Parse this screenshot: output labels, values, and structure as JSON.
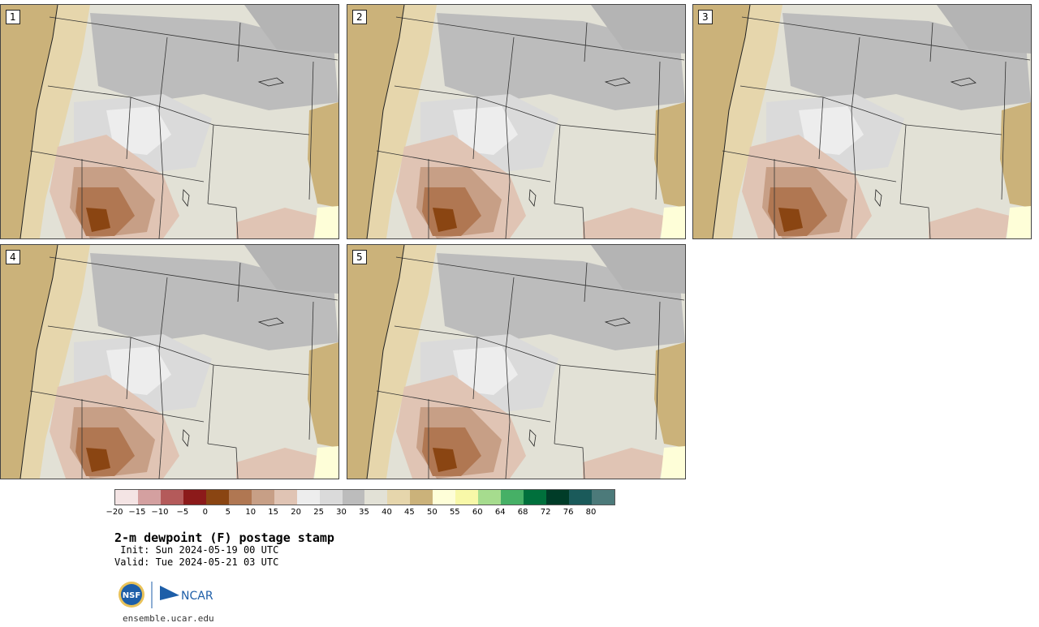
{
  "panels": [
    {
      "label": "1"
    },
    {
      "label": "2"
    },
    {
      "label": "3"
    },
    {
      "label": "4"
    },
    {
      "label": "5"
    }
  ],
  "colorbar": {
    "ticks": [
      "−20",
      "−15",
      "−10",
      "−5",
      "0",
      "5",
      "10",
      "15",
      "20",
      "25",
      "30",
      "35",
      "40",
      "45",
      "50",
      "55",
      "60",
      "64",
      "68",
      "72",
      "76",
      "80"
    ],
    "colors": [
      "#f4e4e4",
      "#d4a0a0",
      "#b45a5a",
      "#8c1a1a",
      "#8a4512",
      "#b07752",
      "#c79f86",
      "#e0c4b4",
      "#ededed",
      "#dadada",
      "#bcbcbc",
      "#e2e1d6",
      "#e6d6ac",
      "#cbb27a",
      "#fefed8",
      "#f8f8a8",
      "#a6dc8e",
      "#46b066",
      "#00703c",
      "#003c28",
      "#1a5a5a",
      "#4c7a7a"
    ]
  },
  "title": "2-m dewpoint (F) postage stamp",
  "init_line": " Init: Sun 2024-05-19 00 UTC",
  "valid_line": "Valid: Tue 2024-05-21 03 UTC",
  "logos": {
    "nsf": "NSF",
    "ncar": "NCAR"
  },
  "site": "ensemble.ucar.edu"
}
